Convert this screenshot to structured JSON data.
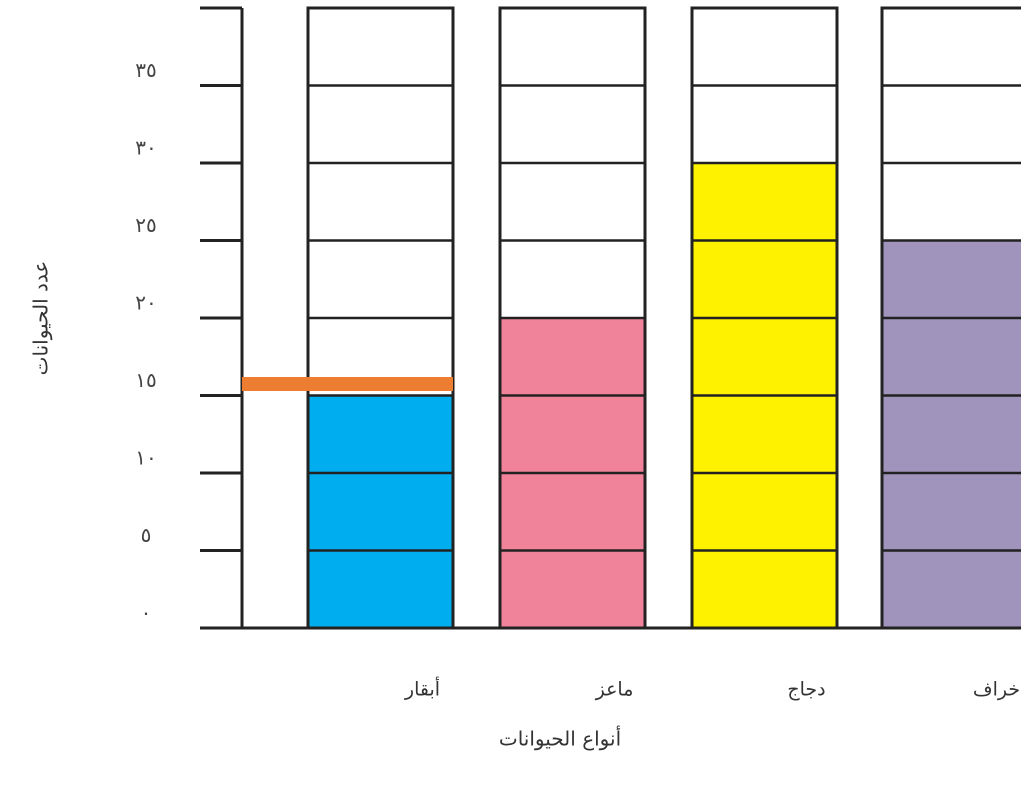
{
  "chart_data": {
    "type": "bar",
    "y_label": "عدد الحيوانات",
    "x_label": "أنواع الحيوانات",
    "categories": [
      "أبقار",
      "ماعز",
      "دجاج",
      "خراف"
    ],
    "values": [
      15,
      20,
      30,
      25
    ],
    "colors": [
      "#00aeef",
      "#f0829a",
      "#fff200",
      "#a094bc"
    ],
    "ylim": [
      0,
      40
    ],
    "yticks": [
      {
        "value": 0,
        "label": "٠"
      },
      {
        "value": 5,
        "label": "٥"
      },
      {
        "value": 10,
        "label": "١٠"
      },
      {
        "value": 15,
        "label": "١٥"
      },
      {
        "value": 20,
        "label": "٢٠"
      },
      {
        "value": 25,
        "label": "٢٥"
      },
      {
        "value": 30,
        "label": "٣٠"
      },
      {
        "value": 35,
        "label": "٣٥"
      }
    ]
  }
}
